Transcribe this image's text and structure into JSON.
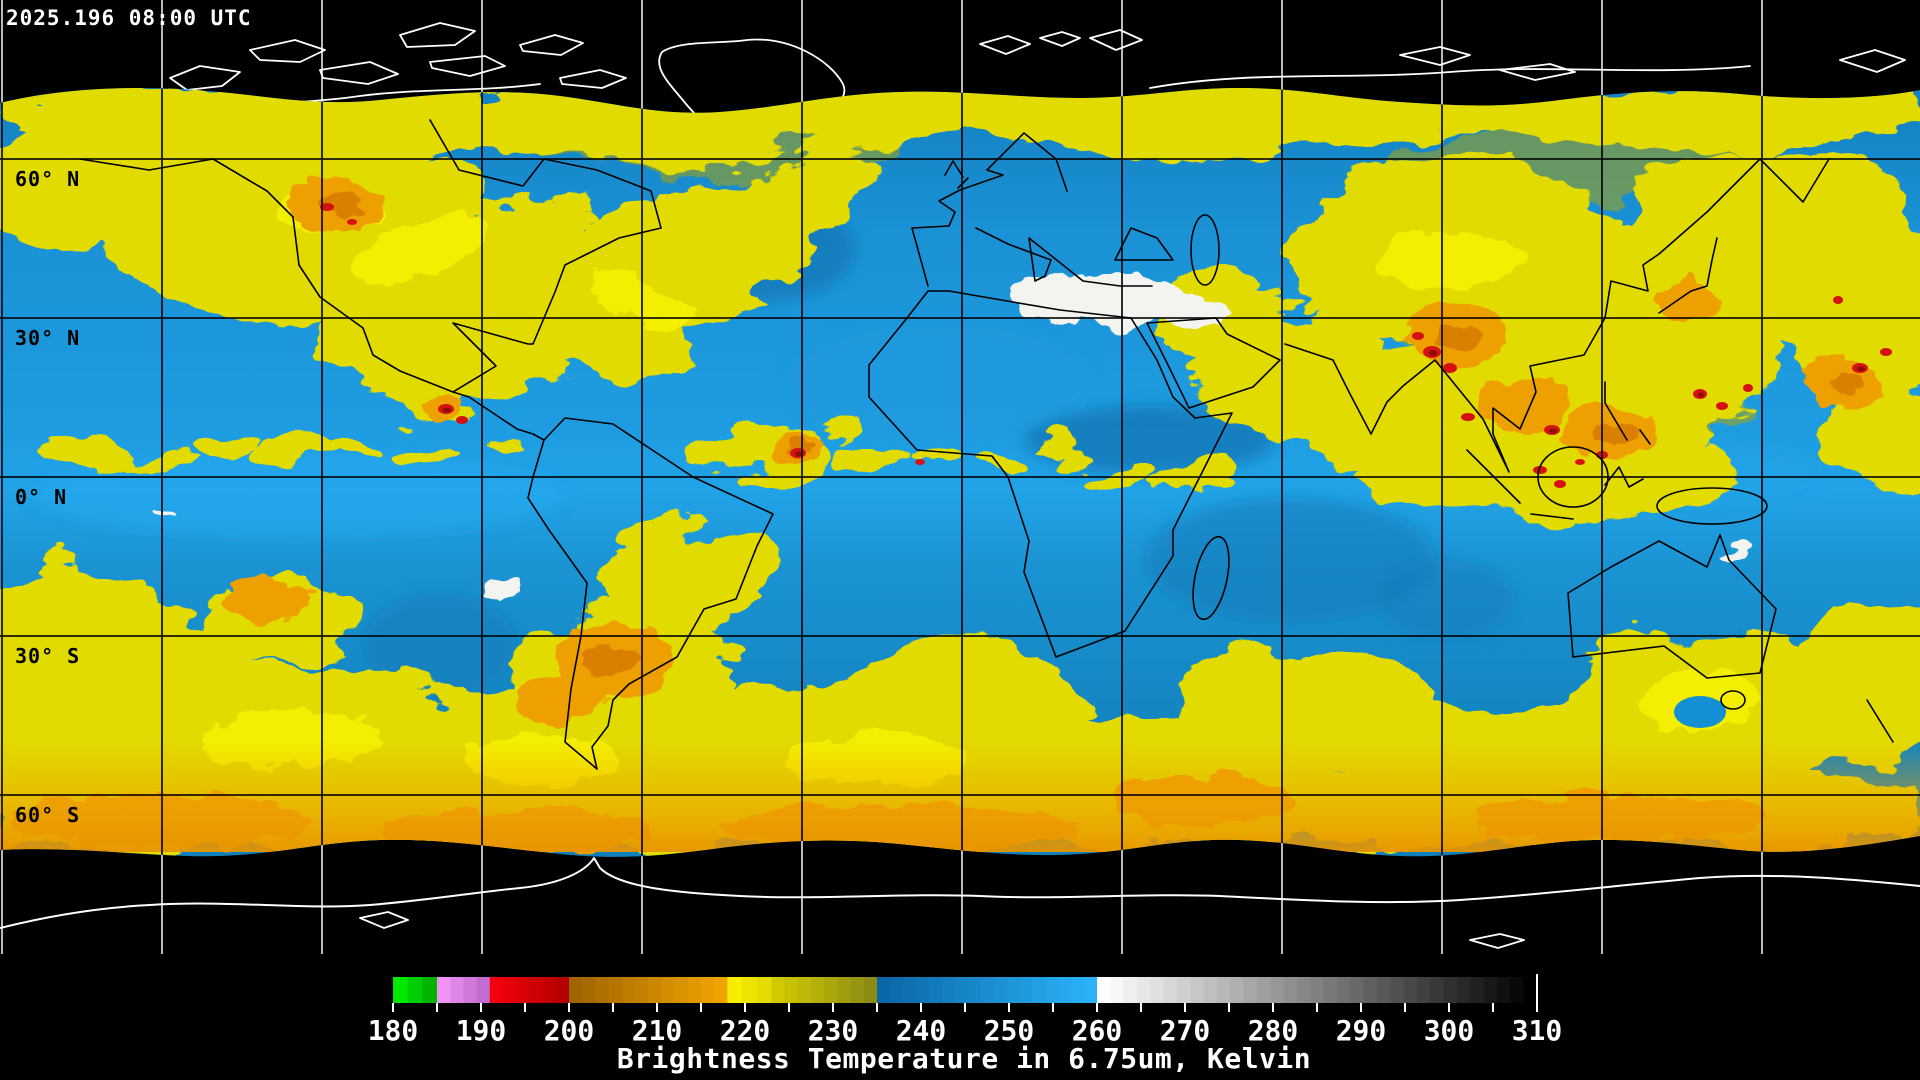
{
  "header": {
    "timestamp": "2025.196 08:00 UTC"
  },
  "map": {
    "latitude_labels": [
      "60° N",
      "30° N",
      "0° N",
      "30° S",
      "60° S"
    ],
    "graticule_spacing_degrees": 30
  },
  "colorbar": {
    "title": "Brightness Temperature in 6.75um, Kelvin",
    "units": "Kelvin",
    "min": 180,
    "max": 310,
    "minor_tick_step": 5,
    "label_step": 10,
    "tick_labels": [
      "180",
      "190",
      "200",
      "210",
      "220",
      "230",
      "240",
      "250",
      "260",
      "270",
      "280",
      "290",
      "300",
      "310"
    ],
    "segments": [
      {
        "from": 180,
        "to": 185,
        "color_start": "#00e800",
        "color_end": "#00b400"
      },
      {
        "from": 185,
        "to": 191,
        "color_start": "#f093f2",
        "color_end": "#c06cd0"
      },
      {
        "from": 191,
        "to": 200,
        "color_start": "#f2000e",
        "color_end": "#b40000"
      },
      {
        "from": 200,
        "to": 218,
        "color_start": "#a06400",
        "color_end": "#f0a400"
      },
      {
        "from": 218,
        "to": 223,
        "color_start": "#f8ec00",
        "color_end": "#e4dc00"
      },
      {
        "from": 223,
        "to": 235,
        "color_start": "#d2ca00",
        "color_end": "#8c8c14"
      },
      {
        "from": 235,
        "to": 260,
        "color_start": "#0a66a6",
        "color_end": "#2ab2f8"
      },
      {
        "from": 260,
        "to": 310,
        "color_start": "#ffffff",
        "color_end": "#000000"
      }
    ]
  },
  "legend_colors": {
    "space_background": "#000000",
    "clear_ocean_blue": "#1b93d6",
    "moist_cloud_yellow": "#e2db00",
    "cold_cloud_orange": "#eda000",
    "deep_convection_red": "#d51111",
    "warm_dry_white": "#f3f3ef",
    "coastline_over_data": "#000000",
    "coastline_over_space": "#ffffff"
  }
}
